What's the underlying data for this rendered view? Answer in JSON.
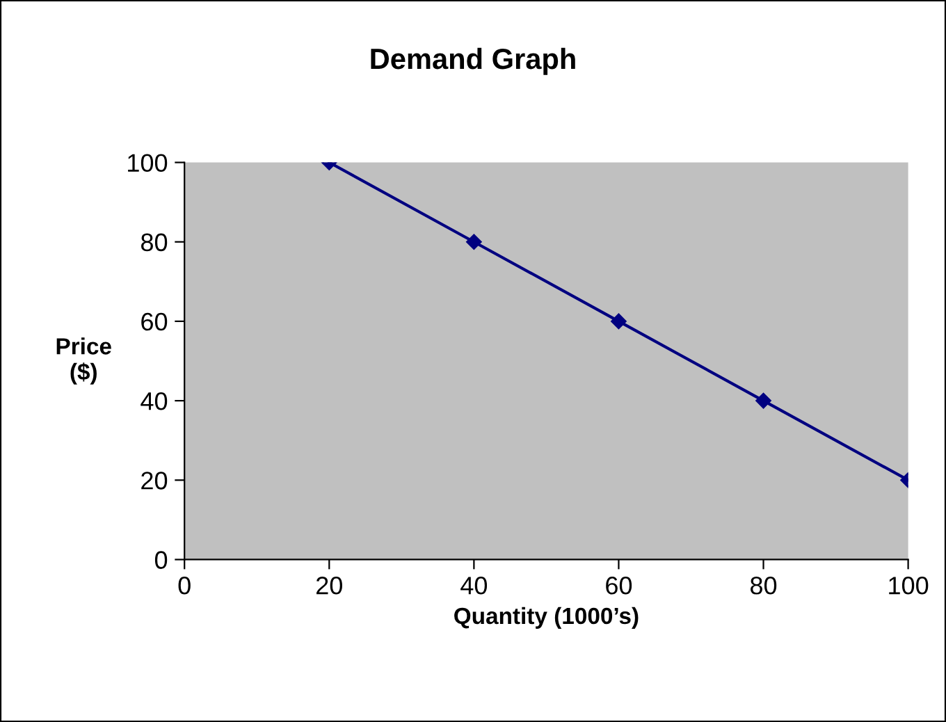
{
  "chart_data": {
    "type": "line",
    "title": "Demand Graph",
    "xlabel": "Quantity (1000’s)",
    "ylabel": "Price\n($)",
    "x": [
      20,
      40,
      60,
      80,
      100
    ],
    "series": [
      {
        "color": "#000080",
        "values": [
          100,
          80,
          60,
          40,
          20
        ]
      }
    ],
    "xlim": [
      0,
      100
    ],
    "ylim": [
      0,
      100
    ],
    "xticks": [
      0,
      20,
      40,
      60,
      80,
      100
    ],
    "yticks": [
      0,
      20,
      40,
      60,
      80,
      100
    ],
    "grid": false,
    "legend": false,
    "marker": "diamond",
    "line_style": "solid"
  }
}
